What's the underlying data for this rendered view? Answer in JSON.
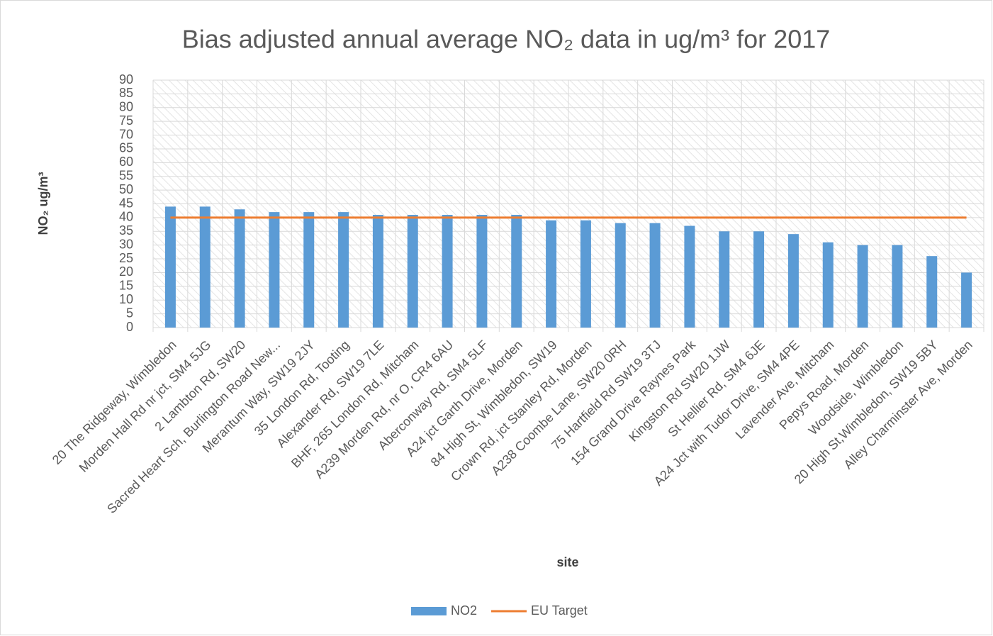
{
  "chart_data": {
    "type": "bar",
    "title": "Bias adjusted annual average NO₂ data in ug/m³ for 2017",
    "x_label": "site",
    "y_label": "NO₂ ug/m³",
    "categories": [
      "20 The Ridgeway, Wimbledon",
      "Morden Hall Rd nr jct, SM4 5JG",
      "2 Lambton Rd, SW20",
      "Sacred Heart Sch, Burlington Road New...",
      "Merantum Way, SW19 2JY",
      "35 London Rd, Tooting",
      "Alexander Rd, SW19 7LE",
      "BHF, 265 London Rd, Mitcham",
      "A239 Morden Rd, nr O, CR4 6AU",
      "Aberconway Rd, SM4 5LF",
      "A24 jct Garth Drive, Morden",
      "84 High St, Wimbledon, SW19",
      "Crown Rd, jct Stanley Rd, Morden",
      "A238 Coombe Lane, SW20 0RH",
      "75 Hartfield Rd SW19 3TJ",
      "154 Grand Drive Raynes Park",
      "Kingston Rd SW20 1JW",
      "St Hellier Rd, SM4 6JE",
      "A24 Jct with Tudor Drive, SM4 4PE",
      "Lavender Ave, Mitcham",
      "Pepys Road, Morden",
      "Woodside, Wimbledon",
      "20  High St,Wimbledon, SW19 5BY",
      "Alley Charminster Ave, Morden"
    ],
    "series": [
      {
        "name": "NO2",
        "type": "bar",
        "color": "#5b9bd5",
        "values": [
          44,
          44,
          43,
          42,
          42,
          42,
          41,
          41,
          41,
          41,
          41,
          39,
          39,
          38,
          38,
          37,
          35,
          35,
          34,
          31,
          30,
          30,
          26,
          20
        ]
      },
      {
        "name": "EU Target",
        "type": "line",
        "color": "#ed7d31",
        "values": [
          40,
          40,
          40,
          40,
          40,
          40,
          40,
          40,
          40,
          40,
          40,
          40,
          40,
          40,
          40,
          40,
          40,
          40,
          40,
          40,
          40,
          40,
          40,
          40
        ]
      }
    ],
    "ylim": [
      0,
      90
    ],
    "yticks": [
      0,
      5,
      10,
      15,
      20,
      25,
      30,
      35,
      40,
      45,
      50,
      55,
      60,
      65,
      70,
      75,
      80,
      85,
      90
    ],
    "grid": true,
    "legend": "bottom"
  }
}
